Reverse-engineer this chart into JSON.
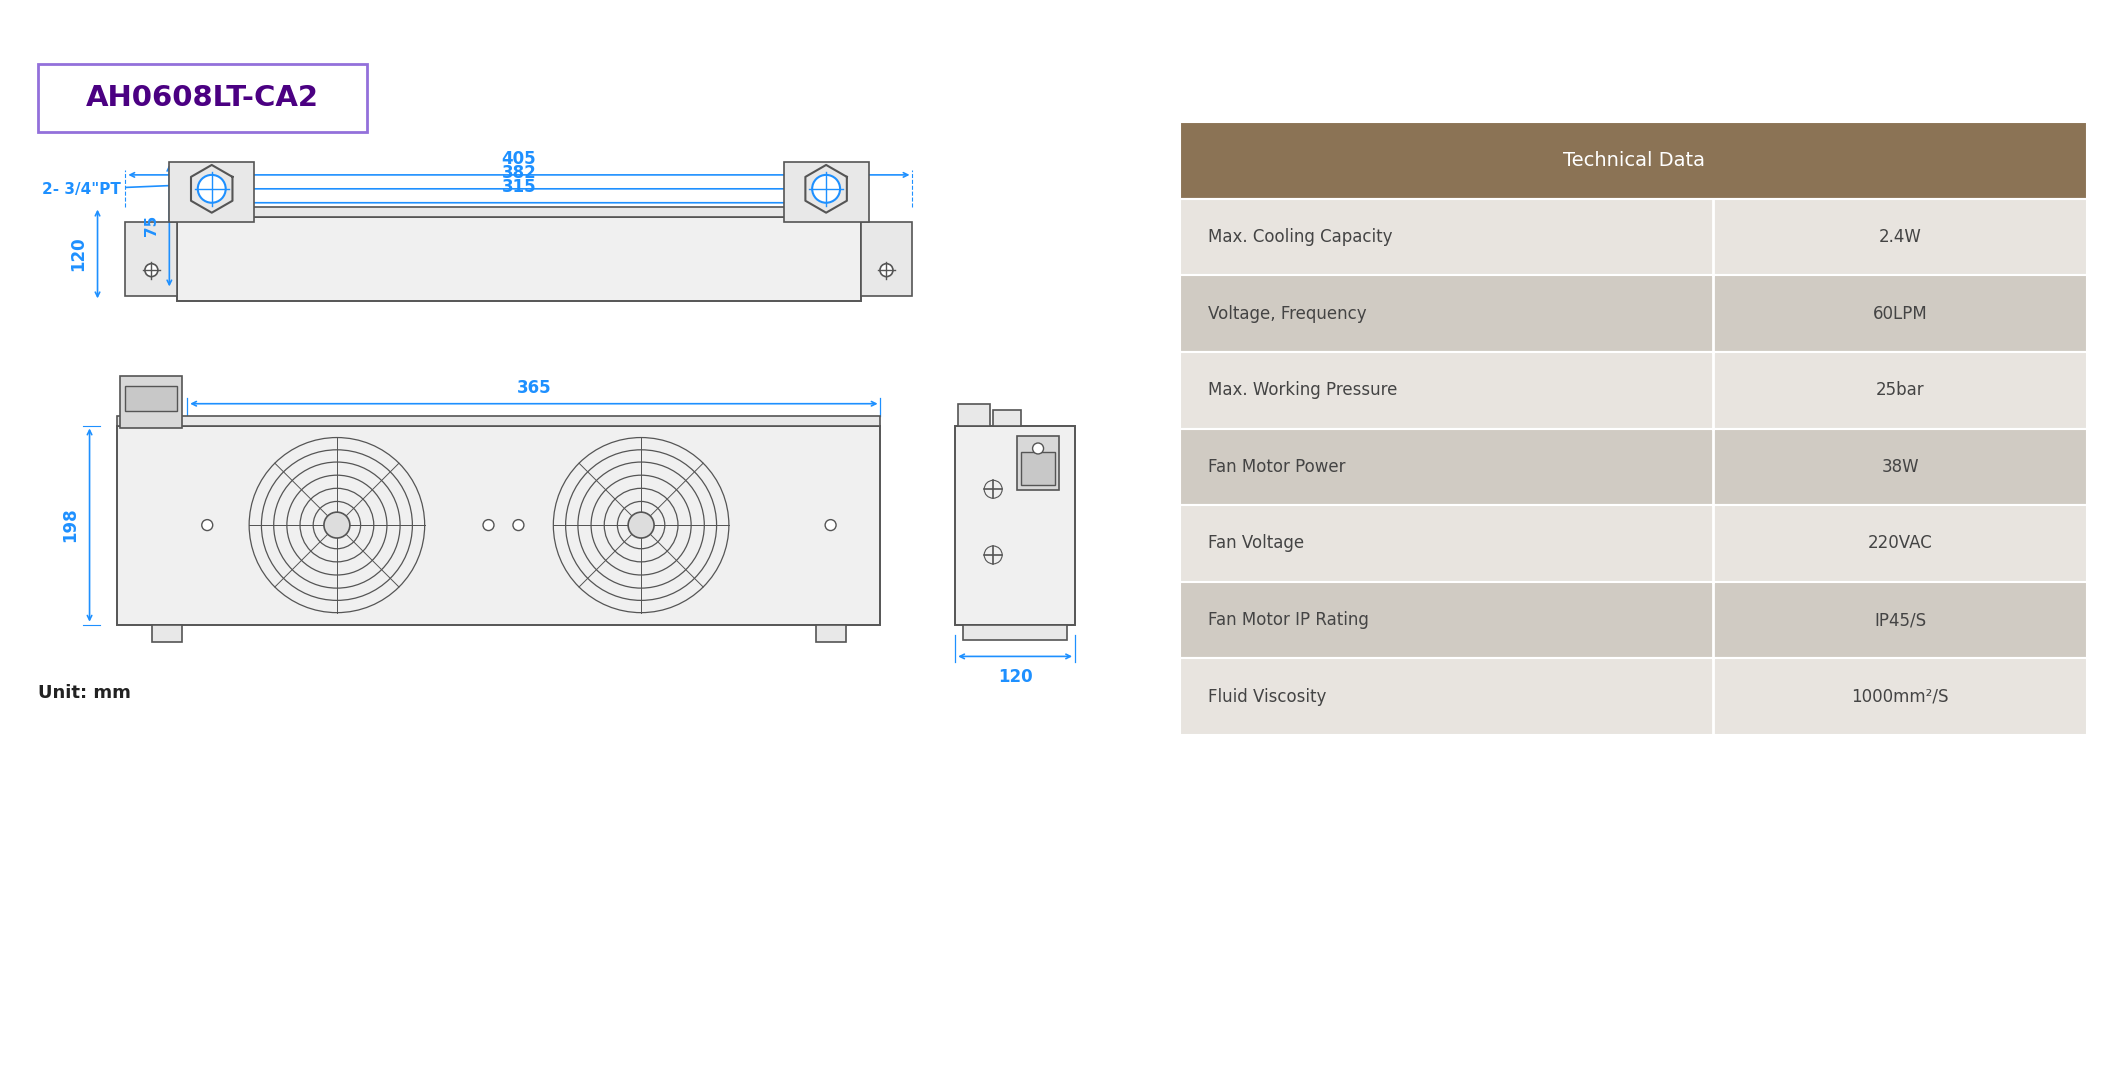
{
  "title": "AH0608LT-CA2",
  "title_color": "#4B0082",
  "title_border_color": "#9370DB",
  "dim_color": "#1E90FF",
  "drawing_color": "#555555",
  "unit_text": "Unit: mm",
  "label_pt": "2- 3/4\"PT",
  "table_header": "Technical Data",
  "table_header_bg": "#8B7355",
  "table_header_color": "#FFFFFF",
  "table_row_bg_odd": "#E8E4DF",
  "table_row_bg_even": "#D0CBC3",
  "table_text_color": "#444444",
  "table_rows": [
    [
      "Max. Cooling Capacity",
      "2.4W"
    ],
    [
      "Voltage, Frequency",
      "60LPM"
    ],
    [
      "Max. Working Pressure",
      "25bar"
    ],
    [
      "Fan Motor Power",
      "38W"
    ],
    [
      "Fan Voltage",
      "220VAC"
    ],
    [
      "Fan Motor IP Rating",
      "IP45/S"
    ],
    [
      "Fluid Viscosity",
      "1000mm²/S"
    ]
  ],
  "bg_color": "#FFFFFF"
}
